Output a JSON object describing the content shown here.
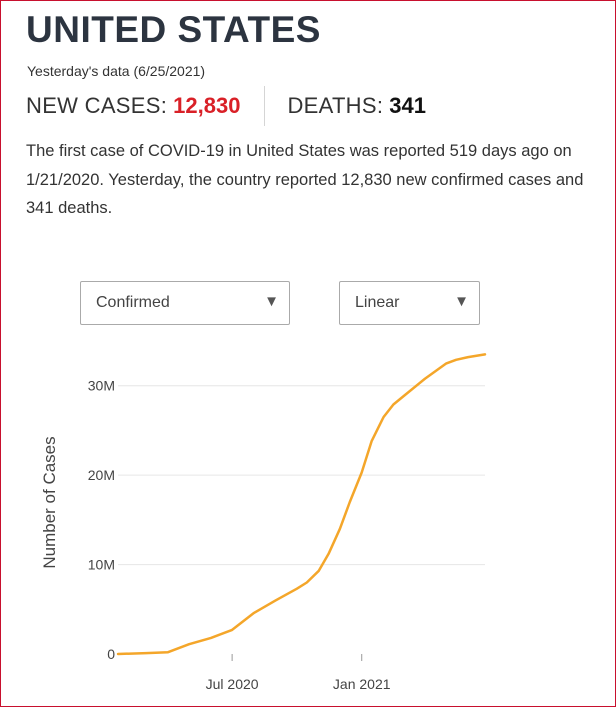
{
  "header": {
    "title": "UNITED STATES",
    "as_of": "Yesterday's data (6/25/2021)",
    "new_cases_label": "NEW CASES:",
    "new_cases_value": "12,830",
    "deaths_label": "DEATHS:",
    "deaths_value": "341"
  },
  "summary": "The first case of COVID-19 in United States was reported 519 days ago on 1/21/2020. Yesterday, the country reported 12,830 new confirmed cases and 341 deaths.",
  "controls": {
    "metric_select": {
      "value": "Confirmed",
      "icon": "caret-down-icon"
    },
    "scale_select": {
      "value": "Linear",
      "icon": "caret-down-icon"
    }
  },
  "colors": {
    "accent_red": "#d92027",
    "line": "#f4a62a",
    "grid": "#e6e6e6",
    "frame": "#c8102e"
  },
  "chart_data": {
    "type": "line",
    "title": "",
    "xlabel": "",
    "ylabel": "Number of Cases",
    "xlim": [
      "2020-01-21",
      "2021-06-25"
    ],
    "ylim": [
      0,
      35000000
    ],
    "x_ticks": [
      {
        "date": "2020-07-01",
        "label": "Jul 2020"
      },
      {
        "date": "2021-01-01",
        "label": "Jan 2021"
      }
    ],
    "y_ticks": [
      {
        "value": 0,
        "label": "0"
      },
      {
        "value": 10000000,
        "label": "10M"
      },
      {
        "value": 20000000,
        "label": "20M"
      },
      {
        "value": 30000000,
        "label": "30M"
      }
    ],
    "grid": true,
    "series": [
      {
        "name": "Confirmed",
        "x": [
          "2020-01-21",
          "2020-03-01",
          "2020-04-01",
          "2020-05-01",
          "2020-06-01",
          "2020-07-01",
          "2020-08-01",
          "2020-09-01",
          "2020-10-01",
          "2020-10-15",
          "2020-11-01",
          "2020-11-15",
          "2020-12-01",
          "2020-12-15",
          "2021-01-01",
          "2021-01-15",
          "2021-02-01",
          "2021-02-15",
          "2021-03-01",
          "2021-04-01",
          "2021-05-01",
          "2021-05-15",
          "2021-06-01",
          "2021-06-25"
        ],
        "y": [
          0,
          100000,
          200000,
          1100000,
          1800000,
          2700000,
          4600000,
          6000000,
          7300000,
          8000000,
          9300000,
          11200000,
          14000000,
          17000000,
          20300000,
          23800000,
          26500000,
          27900000,
          28800000,
          30800000,
          32500000,
          32900000,
          33200000,
          33500000
        ]
      }
    ]
  }
}
